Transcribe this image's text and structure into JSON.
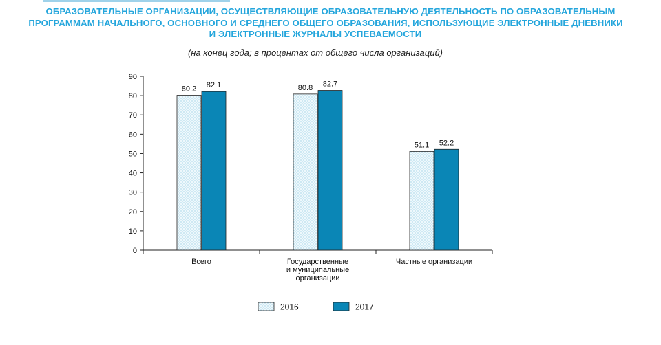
{
  "header": {
    "title_lines": [
      "ОБРАЗОВАТЕЛЬНЫЕ ОРГАНИЗАЦИИ, ОСУЩЕСТВЛЯЮЩИЕ ОБРАЗОВАТЕЛЬНУЮ ДЕЯТЕЛЬНОСТЬ ПО ОБРАЗОВАТЕЛЬНЫМ",
      "ПРОГРАММАМ НАЧАЛЬНОГО, ОСНОВНОГО И СРЕДНЕГО ОБЩЕГО ОБРАЗОВАНИЯ, ИСПОЛЬЗУЮЩИЕ ЭЛЕКТРОННЫЕ ДНЕВНИКИ",
      "И ЭЛЕКТРОННЫЕ ЖУРНАЛЫ УСПЕВАЕМОСТИ"
    ],
    "subtitle": "(на конец года; в процентах от общего числа организаций)"
  },
  "colors": {
    "title": "#25a6dc",
    "series_2017": "#0a86b6",
    "series_2016_fill": "#eef8fc",
    "series_2016_dots": "#7fc3df"
  },
  "chart_data": {
    "type": "bar",
    "title": "ОБРАЗОВАТЕЛЬНЫЕ ОРГАНИЗАЦИИ, ОСУЩЕСТВЛЯЮЩИЕ ОБРАЗОВАТЕЛЬНУЮ ДЕЯТЕЛЬНОСТЬ ПО ОБРАЗОВАТЕЛЬНЫМ ПРОГРАММАМ НАЧАЛЬНОГО, ОСНОВНОГО И СРЕДНЕГО ОБЩЕГО ОБРАЗОВАНИЯ, ИСПОЛЬЗУЮЩИЕ ЭЛЕКТРОННЫЕ ДНЕВНИКИ И ЭЛЕКТРОННЫЕ ЖУРНАЛЫ УСПЕВАЕМОСТИ",
    "subtitle": "(на конец года; в процентах от общего числа организаций)",
    "categories": [
      [
        "Всего"
      ],
      [
        "Государственные",
        "и муниципальные",
        "организации"
      ],
      [
        "Частные организации"
      ]
    ],
    "series": [
      {
        "name": "2016",
        "values": [
          80.2,
          80.8,
          51.1
        ],
        "pattern": "dotted"
      },
      {
        "name": "2017",
        "values": [
          82.1,
          82.7,
          52.2
        ],
        "pattern": "solid"
      }
    ],
    "ylim": [
      0,
      90
    ],
    "yticks": [
      0,
      10,
      20,
      30,
      40,
      50,
      60,
      70,
      80,
      90
    ],
    "grid": false,
    "legend_position": "bottom-center",
    "data_labels": true
  }
}
